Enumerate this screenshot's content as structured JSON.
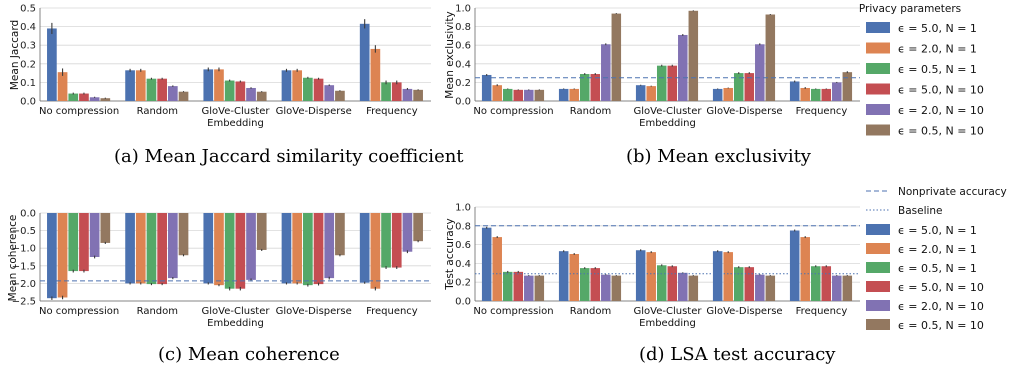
{
  "colors": [
    "#4c72b0",
    "#dd8452",
    "#55a868",
    "#c44e52",
    "#8172b3",
    "#937860"
  ],
  "legend_top": {
    "title": "Privacy parameters",
    "entries": [
      "ϵ = 5.0, N = 1",
      "ϵ = 2.0, N = 1",
      "ϵ = 0.5, N = 1",
      "ϵ = 5.0, N = 10",
      "ϵ = 2.0, N = 10",
      "ϵ = 0.5, N = 10"
    ]
  },
  "legend_bottom": {
    "line_entries": [
      "Nonprivate accuracy",
      "Baseline"
    ],
    "entries": [
      "ϵ = 5.0, N = 1",
      "ϵ = 2.0, N = 1",
      "ϵ = 0.5, N = 1",
      "ϵ = 5.0, N = 10",
      "ϵ = 2.0, N = 10",
      "ϵ = 0.5, N = 10"
    ]
  },
  "chart_data": [
    {
      "id": "a",
      "type": "bar",
      "caption": "(a) Mean Jaccard similarity coefficient",
      "ylabel": "Mean Jaccard",
      "ylim": [
        0,
        0.5
      ],
      "yticks": [
        0.0,
        0.1,
        0.2,
        0.3,
        0.4,
        0.5
      ],
      "ytick_labels": [
        "0.0",
        "0.1",
        "0.2",
        "0.3",
        "0.4",
        "0.5"
      ],
      "categories": [
        "No compression",
        "Random",
        "GloVe-Cluster\nEmbedding",
        "GloVe-Disperse",
        "Frequency"
      ],
      "series": [
        {
          "values": [
            0.39,
            0.165,
            0.17,
            0.165,
            0.415
          ],
          "err": [
            0.03,
            0.008,
            0.01,
            0.008,
            0.025
          ]
        },
        {
          "values": [
            0.155,
            0.165,
            0.17,
            0.165,
            0.28
          ],
          "err": [
            0.02,
            0.008,
            0.01,
            0.008,
            0.02
          ]
        },
        {
          "values": [
            0.04,
            0.12,
            0.11,
            0.125,
            0.1
          ],
          "err": [
            0.005,
            0.005,
            0.005,
            0.005,
            0.01
          ]
        },
        {
          "values": [
            0.04,
            0.12,
            0.105,
            0.12,
            0.1
          ],
          "err": [
            0.005,
            0.005,
            0.005,
            0.005,
            0.01
          ]
        },
        {
          "values": [
            0.02,
            0.08,
            0.07,
            0.085,
            0.065
          ],
          "err": [
            0.003,
            0.004,
            0.004,
            0.004,
            0.005
          ]
        },
        {
          "values": [
            0.015,
            0.05,
            0.05,
            0.055,
            0.06
          ],
          "err": [
            0.003,
            0.003,
            0.003,
            0.003,
            0.003
          ]
        }
      ]
    },
    {
      "id": "b",
      "type": "bar",
      "caption": "(b) Mean exclusivity",
      "ylabel": "Mean exclusivity",
      "ylim": [
        0,
        1.0
      ],
      "yticks": [
        0.0,
        0.2,
        0.4,
        0.6,
        0.8,
        1.0
      ],
      "ytick_labels": [
        "0.0",
        "0.2",
        "0.4",
        "0.6",
        "0.8",
        "1.0"
      ],
      "categories": [
        "No compression",
        "Random",
        "GloVe-Cluster\nEmbedding",
        "GloVe-Disperse",
        "Frequency"
      ],
      "reference_lines": [
        {
          "style": "dashed",
          "value": 0.25
        }
      ],
      "series": [
        {
          "values": [
            0.28,
            0.13,
            0.17,
            0.13,
            0.21
          ],
          "err": [
            0.01,
            0.005,
            0.005,
            0.005,
            0.01
          ]
        },
        {
          "values": [
            0.17,
            0.13,
            0.16,
            0.14,
            0.14
          ],
          "err": [
            0.01,
            0.005,
            0.005,
            0.005,
            0.01
          ]
        },
        {
          "values": [
            0.13,
            0.29,
            0.38,
            0.3,
            0.13
          ],
          "err": [
            0.005,
            0.01,
            0.01,
            0.01,
            0.005
          ]
        },
        {
          "values": [
            0.12,
            0.29,
            0.38,
            0.3,
            0.13
          ],
          "err": [
            0.005,
            0.01,
            0.01,
            0.01,
            0.005
          ]
        },
        {
          "values": [
            0.12,
            0.61,
            0.71,
            0.61,
            0.2
          ],
          "err": [
            0.005,
            0.01,
            0.01,
            0.01,
            0.005
          ]
        },
        {
          "values": [
            0.12,
            0.94,
            0.97,
            0.93,
            0.31
          ],
          "err": [
            0.005,
            0.005,
            0.005,
            0.005,
            0.01
          ]
        }
      ]
    },
    {
      "id": "c",
      "type": "bar",
      "caption": "(c) Mean coherence",
      "ylabel": "Mean coherence",
      "ylim": [
        -2.5,
        0.0
      ],
      "yticks": [
        0.0,
        -0.5,
        -1.0,
        -1.5,
        -2.0,
        -2.5
      ],
      "ytick_labels": [
        "0.0",
        "−0.5",
        "−1.0",
        "−1.5",
        "−2.0",
        "−2.5"
      ],
      "categories": [
        "No compression",
        "Random",
        "GloVe-Cluster\nEmbedding",
        "GloVe-Disperse",
        "Frequency"
      ],
      "reference_lines": [
        {
          "style": "dashed",
          "value": -1.93
        }
      ],
      "series": [
        {
          "values": [
            -2.42,
            -2.0,
            -2.0,
            -2.0,
            -1.98
          ],
          "err": [
            0.05,
            0.03,
            0.03,
            0.03,
            0.03
          ]
        },
        {
          "values": [
            -2.4,
            -2.0,
            -2.05,
            -2.0,
            -2.15
          ],
          "err": [
            0.05,
            0.03,
            0.03,
            0.03,
            0.05
          ]
        },
        {
          "values": [
            -1.65,
            -2.02,
            -2.15,
            -2.05,
            -1.55
          ],
          "err": [
            0.04,
            0.03,
            0.05,
            0.04,
            0.04
          ]
        },
        {
          "values": [
            -1.65,
            -2.02,
            -2.15,
            -2.02,
            -1.55
          ],
          "err": [
            0.04,
            0.03,
            0.05,
            0.04,
            0.04
          ]
        },
        {
          "values": [
            -1.25,
            -1.85,
            -1.9,
            -1.85,
            -1.1
          ],
          "err": [
            0.04,
            0.03,
            0.04,
            0.04,
            0.04
          ]
        },
        {
          "values": [
            -0.85,
            -1.2,
            -1.05,
            -1.2,
            -0.8
          ],
          "err": [
            0.03,
            0.03,
            0.03,
            0.03,
            0.03
          ]
        }
      ]
    },
    {
      "id": "d",
      "type": "bar",
      "caption": "(d) LSA test accuracy",
      "ylabel": "Test accuracy",
      "ylim": [
        0,
        1.0
      ],
      "yticks": [
        0.0,
        0.2,
        0.4,
        0.6,
        0.8,
        1.0
      ],
      "ytick_labels": [
        "0.0",
        "0.2",
        "0.4",
        "0.6",
        "0.8",
        "1.0"
      ],
      "categories": [
        "No compression",
        "Random",
        "GloVe-Cluster\nEmbedding",
        "GloVe-Disperse",
        "Frequency"
      ],
      "reference_lines": [
        {
          "style": "dashed",
          "value": 0.8
        },
        {
          "style": "dotted",
          "value": 0.29
        }
      ],
      "series": [
        {
          "values": [
            0.78,
            0.53,
            0.54,
            0.53,
            0.75
          ],
          "err": [
            0.01,
            0.01,
            0.01,
            0.01,
            0.01
          ]
        },
        {
          "values": [
            0.68,
            0.5,
            0.52,
            0.52,
            0.68
          ],
          "err": [
            0.01,
            0.01,
            0.01,
            0.01,
            0.01
          ]
        },
        {
          "values": [
            0.31,
            0.35,
            0.38,
            0.36,
            0.37
          ],
          "err": [
            0.01,
            0.01,
            0.01,
            0.01,
            0.01
          ]
        },
        {
          "values": [
            0.31,
            0.35,
            0.37,
            0.36,
            0.37
          ],
          "err": [
            0.01,
            0.01,
            0.01,
            0.01,
            0.01
          ]
        },
        {
          "values": [
            0.27,
            0.28,
            0.3,
            0.28,
            0.27
          ],
          "err": [
            0.005,
            0.005,
            0.005,
            0.005,
            0.005
          ]
        },
        {
          "values": [
            0.27,
            0.27,
            0.27,
            0.27,
            0.27
          ],
          "err": [
            0.005,
            0.005,
            0.005,
            0.005,
            0.005
          ]
        }
      ]
    }
  ]
}
